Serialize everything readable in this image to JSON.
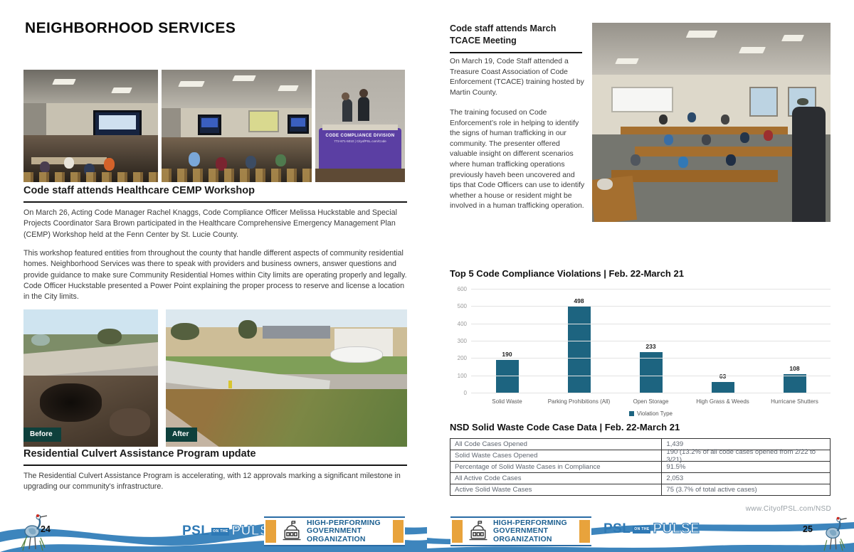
{
  "left_page": {
    "title": "NEIGHBORHOOD SERVICES",
    "cemp_heading": "Code staff attends Healthcare CEMP Workshop",
    "cemp_para1": "On March 26, Acting Code Manager Rachel Knaggs, Code Compliance Officer Melissa Huckstable and Special Projects Coordinator Sara Brown participated in the Healthcare Comprehensive Emergency Management Plan (CEMP) Workshop held at the Fenn Center by St. Lucie County.",
    "cemp_para2": "This workshop featured entities from throughout the county that handle different aspects of community residential homes. Neighborhood Services was there to speak with providers and business owners, answer questions and provide guidance to make sure Community Residential Homes within City limits are operating properly and legally. Code Officer Huckstable presented a Power Point explaining the proper process to reserve and license a location in the City limits.",
    "culvert_heading": "Residential Culvert Assistance Program update",
    "culvert_para": "The Residential Culvert Assistance Program is accelerating, with 12 approvals marking a significant milestone in upgrading our community's infrastructure.",
    "before_label": "Before",
    "after_label": "After",
    "page_number": "24"
  },
  "right_page": {
    "tcace_heading": "Code staff attends March TCACE Meeting",
    "tcace_para1": "On March 19, Code Staff attended a Treasure Coast Association of Code Enforcement (TCACE) training hosted by Martin County.",
    "tcace_para2": "The training focused on Code Enforcement’s role in helping to identify the signs of human trafficking in our community. The presenter offered valuable insight on different scenarios where human trafficking operations previously haveh been uncovered and tips that Code Officers can use to identify whether a house or resident might be involved in a human trafficking operation.",
    "chart_title": "Top 5 Code Compliance Violations  |  Feb. 22-March 21",
    "table_title": "NSD Solid Waste Code Case Data |  Feb. 22-March 21",
    "website": "www.CityofPSL.com/NSD",
    "page_number": "25"
  },
  "chart_data": {
    "type": "bar",
    "title": "Top 5 Code Compliance Violations | Feb. 22-March 21",
    "categories": [
      "Solid Waste",
      "Parking Prohibitions (All)",
      "Open Storage",
      "High Grass & Weeds",
      "Hurricane Shutters"
    ],
    "values": [
      190,
      498,
      233,
      63,
      108
    ],
    "legend": [
      "Violation Type"
    ],
    "legend_position": "bottom",
    "xlabel": "",
    "ylabel": "",
    "ylim": [
      0,
      600
    ],
    "ytick_step": 100,
    "grid": true,
    "bar_color": "#1d6480"
  },
  "table": {
    "rows": [
      [
        "All Code Cases Opened",
        "1,439"
      ],
      [
        "Solid Waste Cases Opened",
        "190 (13.2% of all code cases opened from 2/22 to 3/21)"
      ],
      [
        "Percentage of Solid Waste Cases in Compliance",
        "91.5%"
      ],
      [
        "All Active Code Cases",
        "2,053"
      ],
      [
        "Active Solid Waste Cases",
        "75 (3.7% of total active cases)"
      ]
    ]
  },
  "photos": {
    "booth_banner_line1": "CODE COMPLIANCE DIVISION",
    "booth_banner_line2": "772-871-5010  |  CityofPSL.com/Code"
  },
  "footer": {
    "psl": "PSL",
    "on_the": "ON THE",
    "pulse": "PULSE",
    "badge_lines": [
      "HIGH-PERFORMING",
      "GOVERNMENT",
      "ORGANIZATION"
    ]
  },
  "colors": {
    "bar_teal": "#1d6480",
    "wave_blue": "#3d85bd",
    "logo_blue": "#2e79b5",
    "badge_orange": "#e8a33c",
    "badge_text_blue": "#1c5f90",
    "before_after_tag": "#0e403c",
    "booth_table_purple": "#5b3fa3"
  }
}
